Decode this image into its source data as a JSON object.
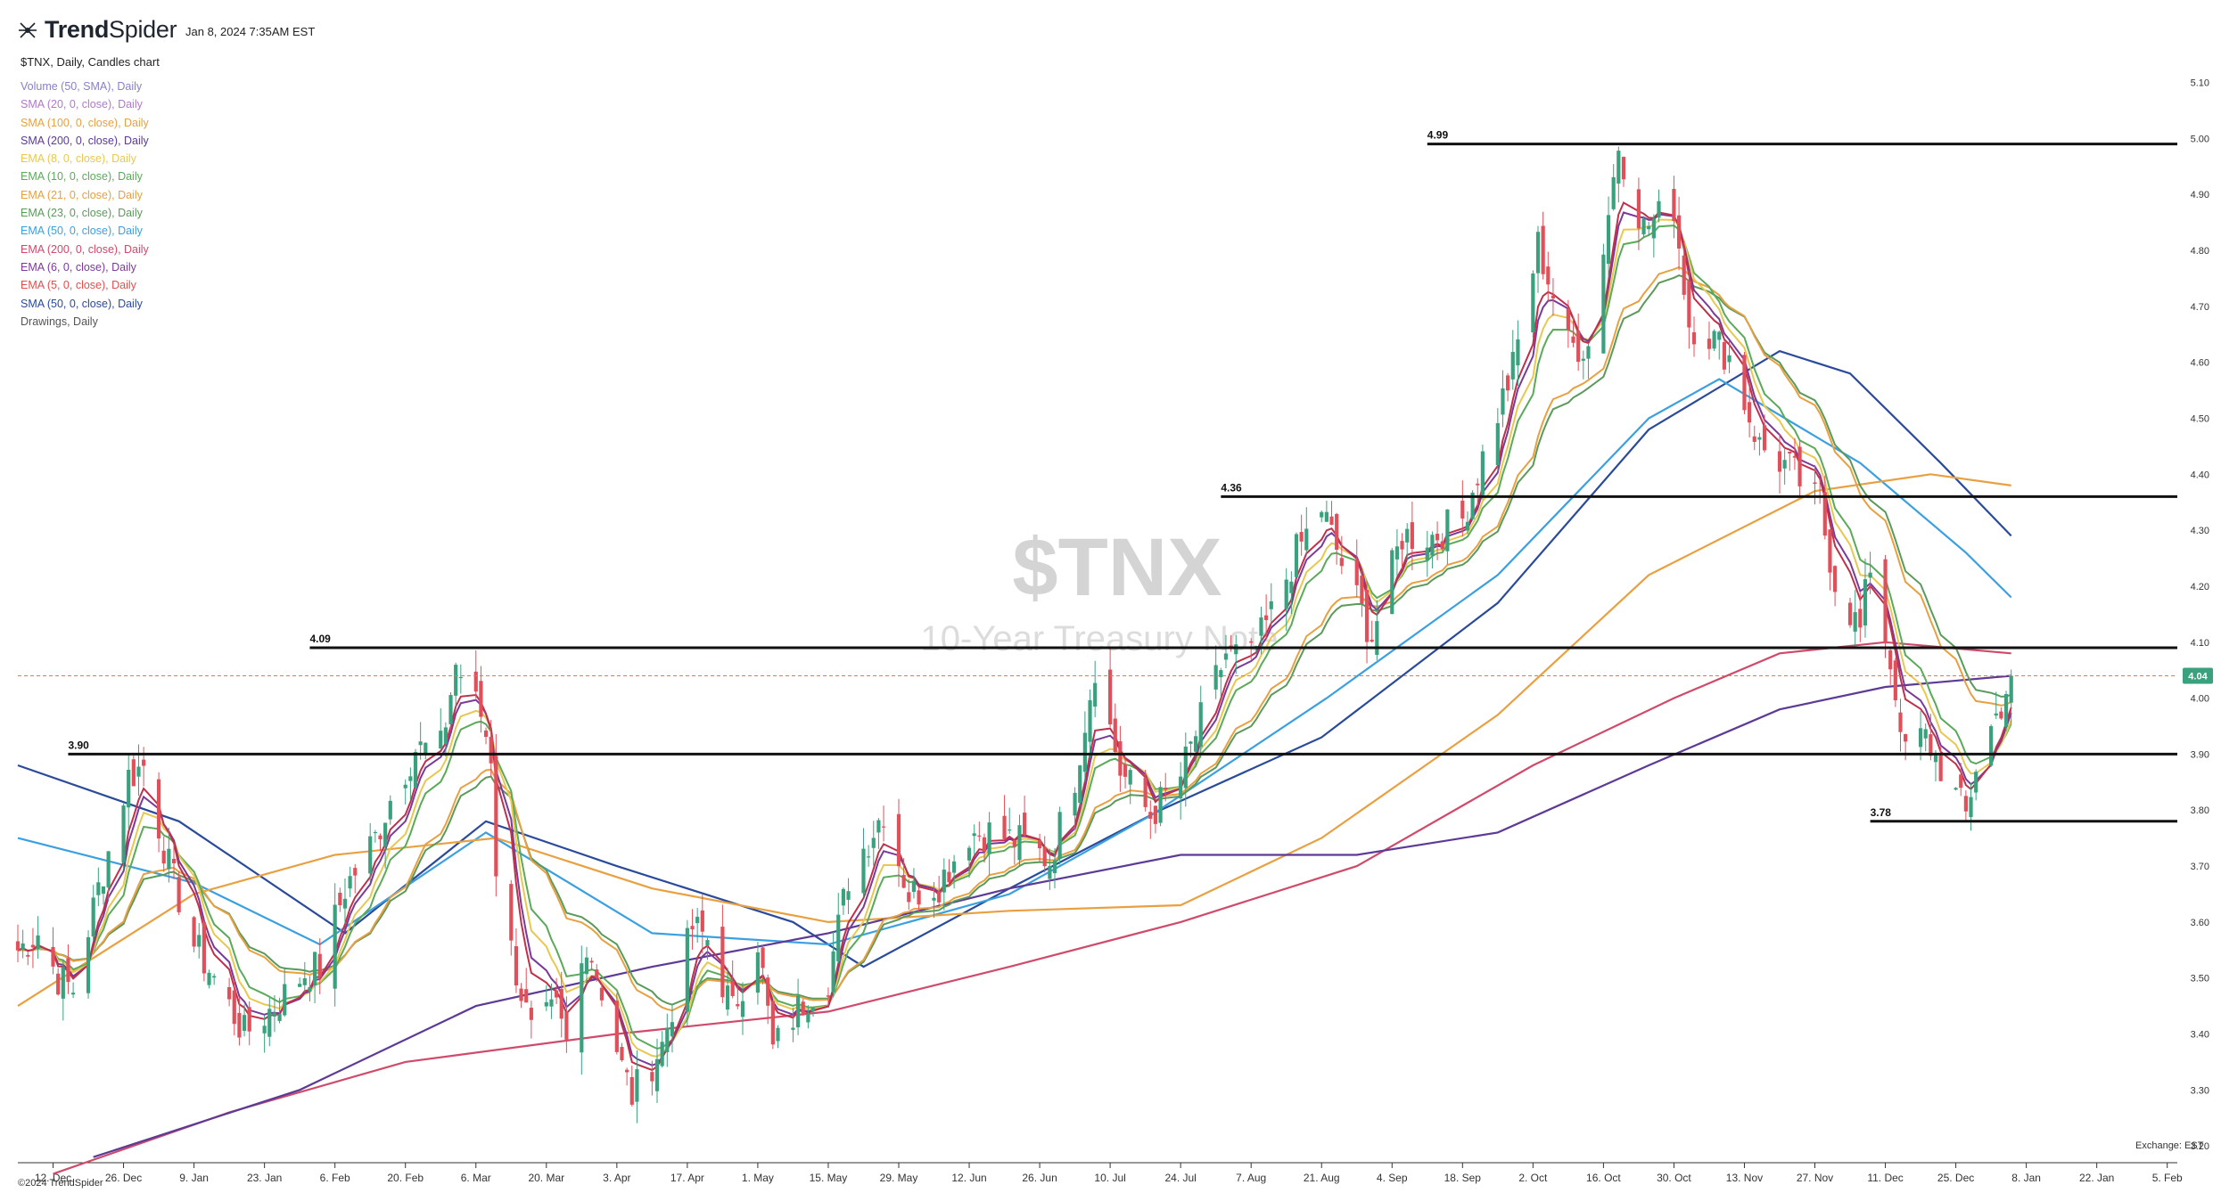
{
  "header": {
    "brand_bold": "Trend",
    "brand_rest": "Spider",
    "date": "Jan 8, 2024 7:35AM EST",
    "chart_description": "$TNX, Daily, Candles chart"
  },
  "legend": [
    {
      "label": "Volume (50, SMA), Daily",
      "color": "#8a80c8"
    },
    {
      "label": "SMA (20, 0, close), Daily",
      "color": "#b07ac8"
    },
    {
      "label": "SMA (100, 0, close), Daily",
      "color": "#e8a040"
    },
    {
      "label": "SMA (200, 0, close), Daily",
      "color": "#5c3a96"
    },
    {
      "label": "EMA (8, 0, close), Daily",
      "color": "#e8c850"
    },
    {
      "label": "EMA (10, 0, close), Daily",
      "color": "#5aaa5a"
    },
    {
      "label": "EMA (21, 0, close), Daily",
      "color": "#e8a040"
    },
    {
      "label": "EMA (23, 0, close), Daily",
      "color": "#5a9a5a"
    },
    {
      "label": "EMA (50, 0, close), Daily",
      "color": "#3aa0e0"
    },
    {
      "label": "EMA (200, 0, close), Daily",
      "color": "#d04a6a"
    },
    {
      "label": "EMA (6, 0, close), Daily",
      "color": "#7a3a9a"
    },
    {
      "label": "EMA (5, 0, close), Daily",
      "color": "#e05050"
    },
    {
      "label": "SMA (50, 0, close), Daily",
      "color": "#2a4a9a"
    },
    {
      "label": "Drawings, Daily",
      "color": "#555555"
    }
  ],
  "watermark": {
    "symbol": "$TNX",
    "name": "10-Year Treasury Note"
  },
  "footer": {
    "copyright": "©2024 TrendSpider",
    "exchange": "Exchange: EST"
  },
  "chart_data": {
    "type": "candlestick",
    "symbol": "$TNX",
    "timeframe": "Daily",
    "ylim": [
      3.17,
      5.12
    ],
    "y_ticks": [
      3.2,
      3.3,
      3.4,
      3.5,
      3.6,
      3.7,
      3.8,
      3.9,
      4.0,
      4.1,
      4.2,
      4.3,
      4.4,
      4.5,
      4.6,
      4.7,
      4.8,
      4.9,
      5.0,
      5.1
    ],
    "y_tick_labels": [
      "3.20",
      "3.30",
      "3.40",
      "3.50",
      "3.60",
      "3.70",
      "3.80",
      "3.90",
      "4.00",
      "4.10",
      "4.20",
      "4.30",
      "4.40",
      "4.50",
      "4.60",
      "4.70",
      "4.80",
      "4.90",
      "5.00",
      "5.10"
    ],
    "x_range": [
      "2022-12-05",
      "2024-02-07"
    ],
    "x_ticks": [
      {
        "date": "2022-12-12",
        "label": "12. Dec"
      },
      {
        "date": "2022-12-26",
        "label": "26. Dec"
      },
      {
        "date": "2023-01-09",
        "label": "9. Jan"
      },
      {
        "date": "2023-01-23",
        "label": "23. Jan"
      },
      {
        "date": "2023-02-06",
        "label": "6. Feb"
      },
      {
        "date": "2023-02-20",
        "label": "20. Feb"
      },
      {
        "date": "2023-03-06",
        "label": "6. Mar"
      },
      {
        "date": "2023-03-20",
        "label": "20. Mar"
      },
      {
        "date": "2023-04-03",
        "label": "3. Apr"
      },
      {
        "date": "2023-04-17",
        "label": "17. Apr"
      },
      {
        "date": "2023-05-01",
        "label": "1. May"
      },
      {
        "date": "2023-05-15",
        "label": "15. May"
      },
      {
        "date": "2023-05-29",
        "label": "29. May"
      },
      {
        "date": "2023-06-12",
        "label": "12. Jun"
      },
      {
        "date": "2023-06-26",
        "label": "26. Jun"
      },
      {
        "date": "2023-07-10",
        "label": "10. Jul"
      },
      {
        "date": "2023-07-24",
        "label": "24. Jul"
      },
      {
        "date": "2023-08-07",
        "label": "7. Aug"
      },
      {
        "date": "2023-08-21",
        "label": "21. Aug"
      },
      {
        "date": "2023-09-04",
        "label": "4. Sep"
      },
      {
        "date": "2023-09-18",
        "label": "18. Sep"
      },
      {
        "date": "2023-10-02",
        "label": "2. Oct"
      },
      {
        "date": "2023-10-16",
        "label": "16. Oct"
      },
      {
        "date": "2023-10-30",
        "label": "30. Oct"
      },
      {
        "date": "2023-11-13",
        "label": "13. Nov"
      },
      {
        "date": "2023-11-27",
        "label": "27. Nov"
      },
      {
        "date": "2023-12-11",
        "label": "11. Dec"
      },
      {
        "date": "2023-12-25",
        "label": "25. Dec"
      },
      {
        "date": "2024-01-08",
        "label": "8. Jan"
      },
      {
        "date": "2024-01-22",
        "label": "22. Jan"
      },
      {
        "date": "2024-02-05",
        "label": "5. Feb"
      }
    ],
    "close_path": [
      [
        "2022-12-05",
        3.55
      ],
      [
        "2022-12-09",
        3.58
      ],
      [
        "2022-12-13",
        3.5
      ],
      [
        "2022-12-16",
        3.48
      ],
      [
        "2022-12-21",
        3.66
      ],
      [
        "2022-12-27",
        3.86
      ],
      [
        "2022-12-30",
        3.88
      ],
      [
        "2023-01-04",
        3.7
      ],
      [
        "2023-01-09",
        3.56
      ],
      [
        "2023-01-13",
        3.5
      ],
      [
        "2023-01-19",
        3.4
      ],
      [
        "2023-01-25",
        3.45
      ],
      [
        "2023-01-31",
        3.51
      ],
      [
        "2023-02-03",
        3.52
      ],
      [
        "2023-02-08",
        3.66
      ],
      [
        "2023-02-14",
        3.75
      ],
      [
        "2023-02-17",
        3.82
      ],
      [
        "2023-02-22",
        3.91
      ],
      [
        "2023-02-27",
        3.91
      ],
      [
        "2023-03-02",
        4.06
      ],
      [
        "2023-03-07",
        3.97
      ],
      [
        "2023-03-09",
        3.9
      ],
      [
        "2023-03-10",
        3.7
      ],
      [
        "2023-03-13",
        3.55
      ],
      [
        "2023-03-17",
        3.4
      ],
      [
        "2023-03-22",
        3.44
      ],
      [
        "2023-03-24",
        3.38
      ],
      [
        "2023-03-28",
        3.57
      ],
      [
        "2023-03-31",
        3.48
      ],
      [
        "2023-04-04",
        3.34
      ],
      [
        "2023-04-06",
        3.29
      ],
      [
        "2023-04-12",
        3.38
      ],
      [
        "2023-04-18",
        3.59
      ],
      [
        "2023-04-21",
        3.57
      ],
      [
        "2023-04-26",
        3.44
      ],
      [
        "2023-05-01",
        3.57
      ],
      [
        "2023-05-04",
        3.37
      ],
      [
        "2023-05-10",
        3.46
      ],
      [
        "2023-05-15",
        3.5
      ],
      [
        "2023-05-19",
        3.68
      ],
      [
        "2023-05-26",
        3.8
      ],
      [
        "2023-05-31",
        3.65
      ],
      [
        "2023-06-06",
        3.67
      ],
      [
        "2023-06-12",
        3.76
      ],
      [
        "2023-06-16",
        3.76
      ],
      [
        "2023-06-23",
        3.74
      ],
      [
        "2023-06-28",
        3.71
      ],
      [
        "2023-07-03",
        3.86
      ],
      [
        "2023-07-07",
        4.06
      ],
      [
        "2023-07-12",
        3.87
      ],
      [
        "2023-07-18",
        3.79
      ],
      [
        "2023-07-24",
        3.86
      ],
      [
        "2023-07-28",
        3.96
      ],
      [
        "2023-08-02",
        4.08
      ],
      [
        "2023-08-07",
        4.07
      ],
      [
        "2023-08-11",
        4.15
      ],
      [
        "2023-08-16",
        4.26
      ],
      [
        "2023-08-21",
        4.34
      ],
      [
        "2023-08-25",
        4.24
      ],
      [
        "2023-08-31",
        4.11
      ],
      [
        "2023-09-06",
        4.29
      ],
      [
        "2023-09-12",
        4.29
      ],
      [
        "2023-09-18",
        4.32
      ],
      [
        "2023-09-22",
        4.43
      ],
      [
        "2023-09-28",
        4.59
      ],
      [
        "2023-10-03",
        4.81
      ],
      [
        "2023-10-09",
        4.63
      ],
      [
        "2023-10-13",
        4.63
      ],
      [
        "2023-10-19",
        4.99
      ],
      [
        "2023-10-24",
        4.84
      ],
      [
        "2023-10-30",
        4.88
      ],
      [
        "2023-11-02",
        4.67
      ],
      [
        "2023-11-06",
        4.65
      ],
      [
        "2023-11-10",
        4.61
      ],
      [
        "2023-11-16",
        4.45
      ],
      [
        "2023-11-22",
        4.41
      ],
      [
        "2023-11-28",
        4.34
      ],
      [
        "2023-12-01",
        4.21
      ],
      [
        "2023-12-06",
        4.12
      ],
      [
        "2023-12-08",
        4.24
      ],
      [
        "2023-12-13",
        4.02
      ],
      [
        "2023-12-14",
        3.91
      ],
      [
        "2023-12-19",
        3.93
      ],
      [
        "2023-12-27",
        3.79
      ],
      [
        "2023-12-29",
        3.88
      ],
      [
        "2024-01-03",
        3.99
      ],
      [
        "2024-01-05",
        4.04
      ]
    ],
    "current_price": 4.04,
    "current_price_label": "4.04",
    "levels": [
      {
        "value": 4.99,
        "label": "4.99",
        "from": "2023-09-11"
      },
      {
        "value": 4.36,
        "label": "4.36",
        "from": "2023-08-01"
      },
      {
        "value": 4.09,
        "label": "4.09",
        "from": "2023-02-01"
      },
      {
        "value": 3.9,
        "label": "3.90",
        "from": "2022-12-15"
      },
      {
        "value": 3.78,
        "label": "3.78",
        "from": "2023-12-08"
      }
    ],
    "overlays": [
      {
        "name": "SMA (50, 0, close), Daily",
        "color": "#2a4a9a",
        "points": [
          [
            "2022-12-05",
            3.88
          ],
          [
            "2023-01-06",
            3.78
          ],
          [
            "2023-02-08",
            3.58
          ],
          [
            "2023-03-08",
            3.78
          ],
          [
            "2023-04-03",
            3.7
          ],
          [
            "2023-05-08",
            3.6
          ],
          [
            "2023-05-22",
            3.52
          ],
          [
            "2023-06-20",
            3.66
          ],
          [
            "2023-07-20",
            3.8
          ],
          [
            "2023-08-21",
            3.93
          ],
          [
            "2023-09-25",
            4.17
          ],
          [
            "2023-10-25",
            4.48
          ],
          [
            "2023-11-20",
            4.62
          ],
          [
            "2023-12-04",
            4.58
          ],
          [
            "2023-12-22",
            4.42
          ],
          [
            "2024-01-05",
            4.29
          ]
        ]
      },
      {
        "name": "EMA (50, 0, close), Daily",
        "color": "#3aa0e0",
        "points": [
          [
            "2022-12-05",
            3.75
          ],
          [
            "2023-01-09",
            3.67
          ],
          [
            "2023-02-03",
            3.56
          ],
          [
            "2023-03-08",
            3.76
          ],
          [
            "2023-04-10",
            3.58
          ],
          [
            "2023-05-15",
            3.56
          ],
          [
            "2023-06-20",
            3.65
          ],
          [
            "2023-07-18",
            3.79
          ],
          [
            "2023-08-22",
            4.0
          ],
          [
            "2023-09-25",
            4.22
          ],
          [
            "2023-10-25",
            4.5
          ],
          [
            "2023-11-08",
            4.57
          ],
          [
            "2023-12-06",
            4.42
          ],
          [
            "2023-12-27",
            4.26
          ],
          [
            "2024-01-05",
            4.18
          ]
        ]
      },
      {
        "name": "SMA (100, 0, close), Daily",
        "color": "#e8a040",
        "points": [
          [
            "2022-12-05",
            3.45
          ],
          [
            "2023-01-09",
            3.65
          ],
          [
            "2023-02-06",
            3.72
          ],
          [
            "2023-03-10",
            3.75
          ],
          [
            "2023-04-10",
            3.66
          ],
          [
            "2023-05-15",
            3.6
          ],
          [
            "2023-06-20",
            3.62
          ],
          [
            "2023-07-24",
            3.63
          ],
          [
            "2023-08-21",
            3.75
          ],
          [
            "2023-09-25",
            3.97
          ],
          [
            "2023-10-25",
            4.22
          ],
          [
            "2023-11-27",
            4.37
          ],
          [
            "2023-12-20",
            4.4
          ],
          [
            "2024-01-05",
            4.38
          ]
        ]
      },
      {
        "name": "EMA (200, 0, close), Daily",
        "color": "#d04a6a",
        "points": [
          [
            "2022-12-12",
            3.15
          ],
          [
            "2023-01-16",
            3.26
          ],
          [
            "2023-02-20",
            3.35
          ],
          [
            "2023-04-03",
            3.4
          ],
          [
            "2023-05-15",
            3.44
          ],
          [
            "2023-06-20",
            3.52
          ],
          [
            "2023-07-24",
            3.6
          ],
          [
            "2023-08-28",
            3.7
          ],
          [
            "2023-10-02",
            3.88
          ],
          [
            "2023-10-30",
            4.0
          ],
          [
            "2023-11-20",
            4.08
          ],
          [
            "2023-12-11",
            4.1
          ],
          [
            "2024-01-05",
            4.08
          ]
        ]
      },
      {
        "name": "SMA (200, 0, close), Daily",
        "color": "#5c3a96",
        "points": [
          [
            "2022-12-20",
            3.18
          ],
          [
            "2023-01-30",
            3.3
          ],
          [
            "2023-03-06",
            3.45
          ],
          [
            "2023-04-10",
            3.52
          ],
          [
            "2023-05-15",
            3.58
          ],
          [
            "2023-06-20",
            3.66
          ],
          [
            "2023-07-24",
            3.72
          ],
          [
            "2023-08-28",
            3.72
          ],
          [
            "2023-09-25",
            3.76
          ],
          [
            "2023-10-25",
            3.88
          ],
          [
            "2023-11-20",
            3.98
          ],
          [
            "2023-12-11",
            4.02
          ],
          [
            "2024-01-05",
            4.04
          ]
        ]
      }
    ]
  }
}
